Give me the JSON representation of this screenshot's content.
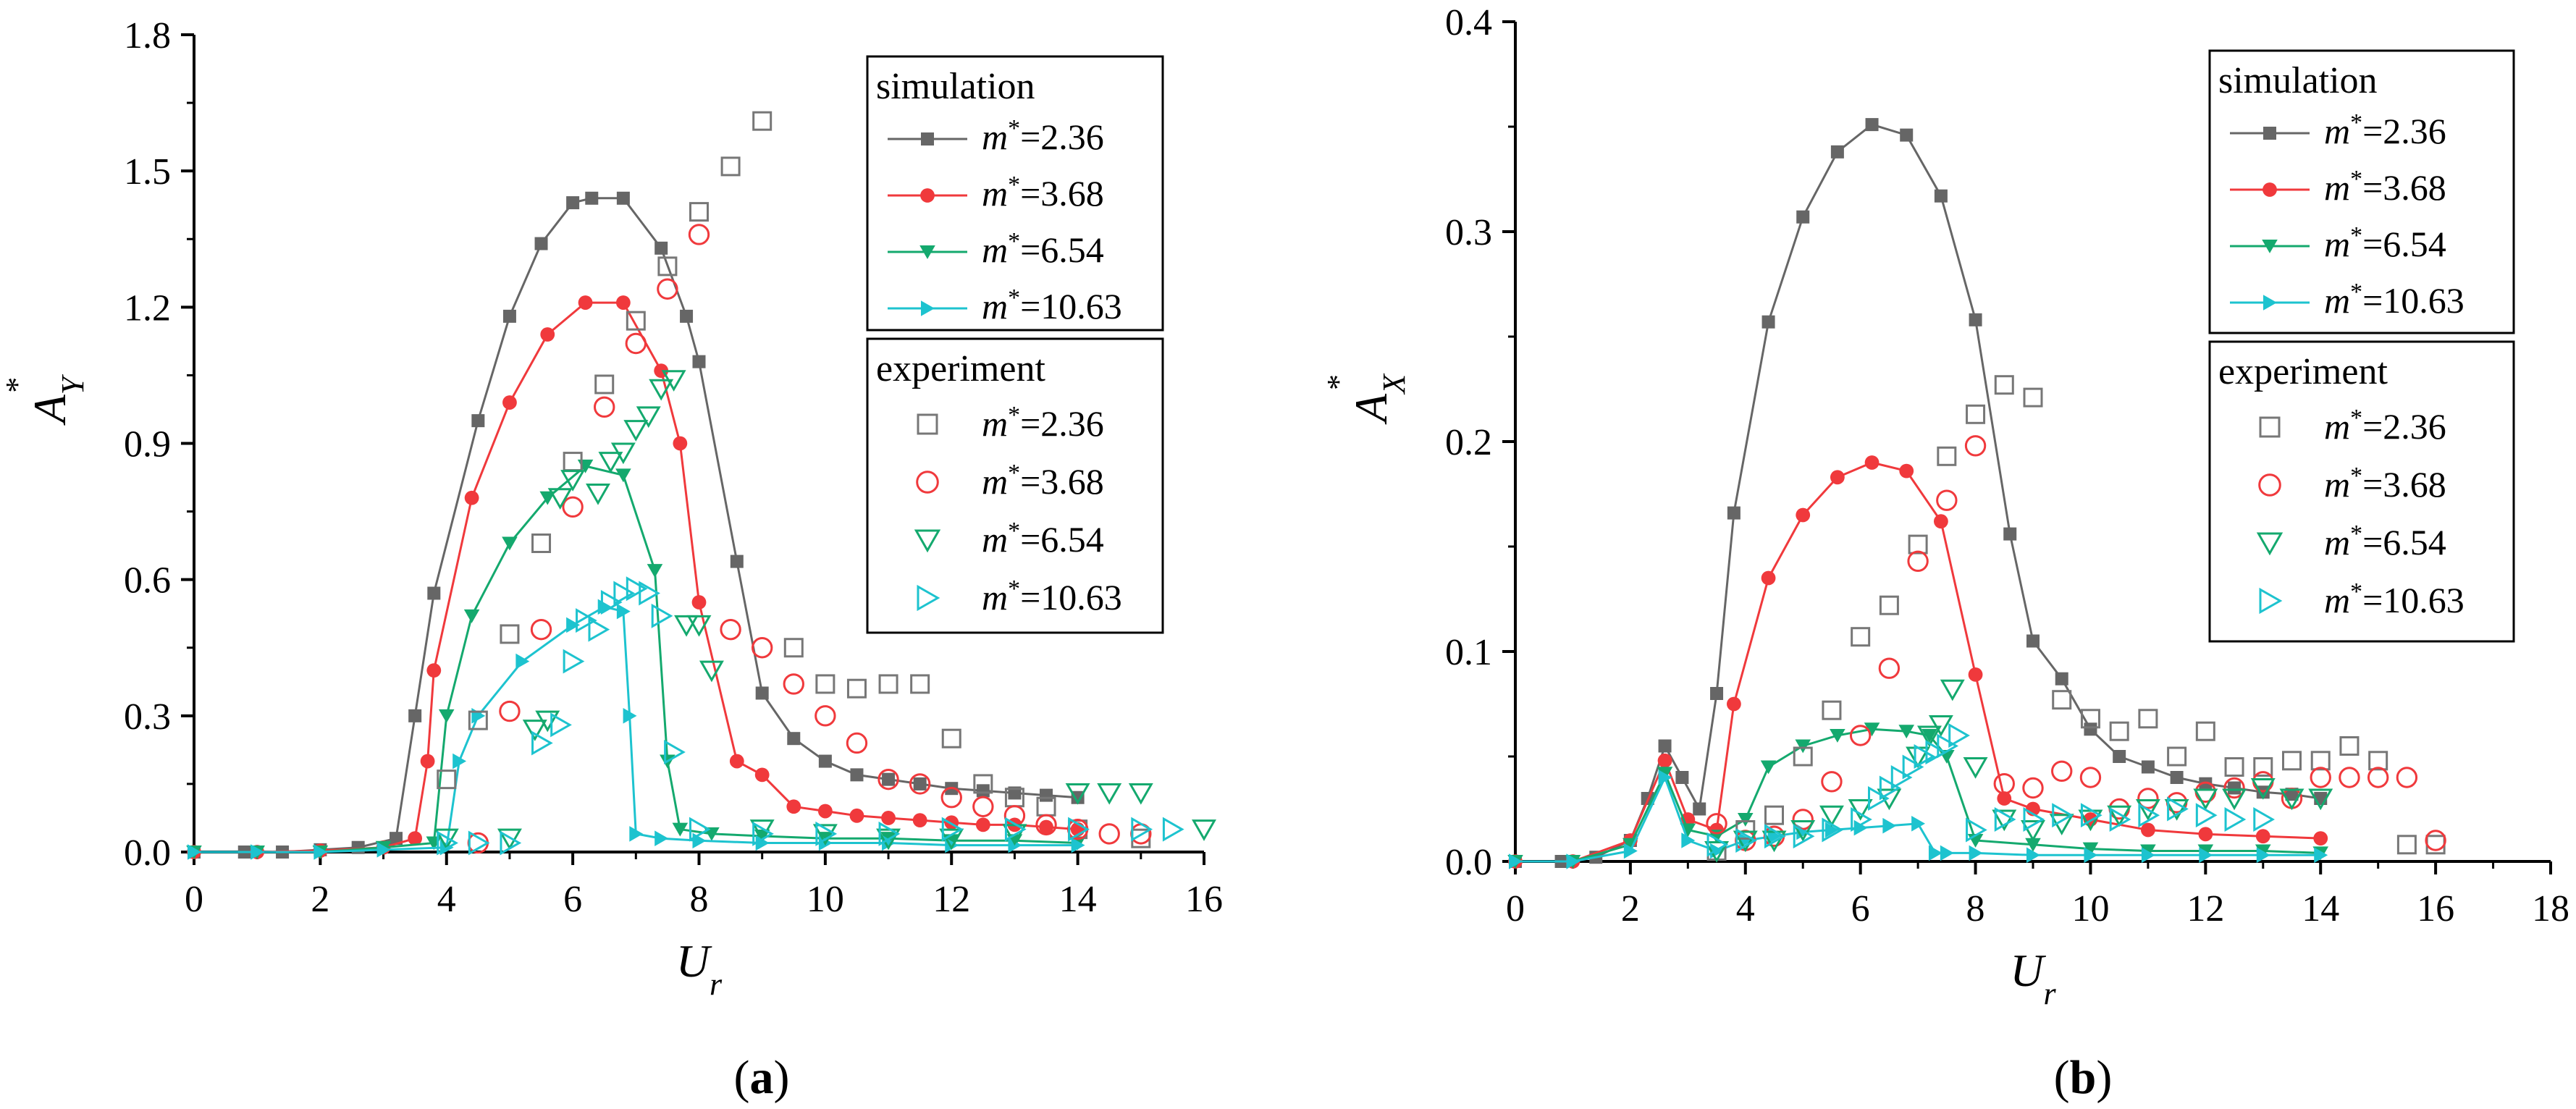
{
  "chart_data": [
    {
      "type": "line",
      "panel_label": "(a)",
      "xlabel": "U_r",
      "ylabel": "A*_Y",
      "xlim": [
        0,
        16
      ],
      "ylim": [
        0,
        1.8
      ],
      "x_ticks": [
        "0",
        "2",
        "4",
        "6",
        "8",
        "10",
        "12",
        "14",
        "16"
      ],
      "y_ticks": [
        "0.0",
        "0.3",
        "0.6",
        "0.9",
        "1.2",
        "1.5",
        "1.8"
      ],
      "legend": {
        "simulation_title": "simulation",
        "experiment_title": "experiment",
        "simulation_labels": [
          "m*=2.36",
          "m*=3.68",
          "m*=6.54",
          "m*=10.63"
        ],
        "experiment_labels": [
          "m*=2.36",
          "m*=3.68",
          "m*=6.54",
          "m*=10.63"
        ]
      },
      "series": [
        {
          "name": "simulation m*=2.36",
          "kind": "simulation",
          "color": "#666666",
          "marker": "square-filled",
          "x": [
            0,
            0.8,
            1.4,
            2,
            2.6,
            3.2,
            3.5,
            3.8,
            4.5,
            5.0,
            5.5,
            6.0,
            6.3,
            6.8,
            7.4,
            7.8,
            8.0,
            8.6,
            9.0,
            9.5,
            10.0,
            10.5,
            11.0,
            11.5,
            12.0,
            12.5,
            13.0,
            13.5,
            14.0
          ],
          "y": [
            0,
            0,
            0,
            0.005,
            0.01,
            0.03,
            0.3,
            0.57,
            0.95,
            1.18,
            1.34,
            1.43,
            1.44,
            1.44,
            1.33,
            1.18,
            1.08,
            0.64,
            0.35,
            0.25,
            0.2,
            0.17,
            0.16,
            0.15,
            0.14,
            0.135,
            0.13,
            0.125,
            0.12
          ]
        },
        {
          "name": "simulation m*=3.68",
          "kind": "simulation",
          "color": "#f0393c",
          "marker": "circle-filled",
          "x": [
            0,
            1,
            2,
            3,
            3.5,
            3.7,
            3.8,
            4.4,
            5.0,
            5.6,
            6.2,
            6.8,
            7.4,
            7.7,
            8.0,
            8.6,
            9.0,
            9.5,
            10.0,
            10.5,
            11.0,
            11.5,
            12.0,
            12.5,
            13.0,
            13.5,
            14.0
          ],
          "y": [
            0,
            0,
            0.003,
            0.01,
            0.03,
            0.2,
            0.4,
            0.78,
            0.99,
            1.14,
            1.21,
            1.21,
            1.06,
            0.9,
            0.55,
            0.2,
            0.17,
            0.1,
            0.09,
            0.08,
            0.075,
            0.07,
            0.065,
            0.06,
            0.06,
            0.055,
            0.05
          ]
        },
        {
          "name": "simulation m*=6.54",
          "kind": "simulation",
          "color": "#14a96e",
          "marker": "triangle-down-filled",
          "x": [
            0,
            1,
            2,
            3,
            3.8,
            4.0,
            4.4,
            5.0,
            5.6,
            6.2,
            6.8,
            7.3,
            7.5,
            7.7,
            8.2,
            9.0,
            10.0,
            11.0,
            12.0,
            13.0,
            14.0
          ],
          "y": [
            0,
            0,
            0,
            0.01,
            0.02,
            0.3,
            0.52,
            0.68,
            0.78,
            0.85,
            0.83,
            0.62,
            0.2,
            0.05,
            0.04,
            0.035,
            0.03,
            0.03,
            0.025,
            0.025,
            0.02
          ]
        },
        {
          "name": "simulation m*=10.63",
          "kind": "simulation",
          "color": "#1dc3cf",
          "marker": "triangle-right-filled",
          "x": [
            0,
            1,
            2,
            3,
            4.0,
            4.2,
            4.5,
            5.2,
            6.0,
            6.5,
            6.8,
            6.9,
            7.0,
            7.4,
            8.0,
            9.0,
            10.0,
            11.0,
            12.0,
            13.0,
            14.0
          ],
          "y": [
            0,
            0,
            0,
            0.005,
            0.01,
            0.2,
            0.3,
            0.42,
            0.5,
            0.54,
            0.53,
            0.3,
            0.04,
            0.03,
            0.025,
            0.02,
            0.02,
            0.02,
            0.015,
            0.015,
            0.015
          ]
        },
        {
          "name": "experiment m*=2.36",
          "kind": "experiment",
          "color": "#777777",
          "marker": "square-open",
          "x": [
            4.0,
            4.5,
            5.0,
            5.5,
            6.0,
            6.5,
            7.0,
            7.5,
            8.0,
            8.5,
            9.0,
            9.5,
            10.0,
            10.5,
            11.0,
            11.5,
            12.0,
            12.5,
            13.0,
            13.5,
            14.0,
            15.0
          ],
          "y": [
            0.16,
            0.29,
            0.48,
            0.68,
            0.86,
            1.03,
            1.17,
            1.29,
            1.41,
            1.51,
            1.61,
            0.45,
            0.37,
            0.36,
            0.37,
            0.37,
            0.25,
            0.15,
            0.12,
            0.1,
            0.05,
            0.03
          ]
        },
        {
          "name": "experiment m*=3.68",
          "kind": "experiment",
          "color": "#f0393c",
          "marker": "circle-open",
          "x": [
            4.5,
            5.0,
            5.5,
            6.0,
            6.5,
            7.0,
            7.5,
            8.0,
            8.5,
            9.0,
            9.5,
            10.0,
            10.5,
            11.0,
            11.5,
            12.0,
            12.5,
            13.0,
            13.5,
            14.0,
            14.5,
            15.0
          ],
          "y": [
            0.02,
            0.31,
            0.49,
            0.76,
            0.98,
            1.12,
            1.24,
            1.36,
            0.49,
            0.45,
            0.37,
            0.3,
            0.24,
            0.16,
            0.15,
            0.12,
            0.1,
            0.08,
            0.06,
            0.05,
            0.04,
            0.04
          ]
        },
        {
          "name": "experiment m*=6.54",
          "kind": "experiment",
          "color": "#14a96e",
          "marker": "triangle-down-open",
          "x": [
            4.0,
            5.0,
            5.4,
            5.6,
            5.8,
            6.0,
            6.4,
            6.6,
            6.8,
            7.0,
            7.2,
            7.4,
            7.6,
            7.8,
            8.0,
            8.2,
            9.0,
            10.0,
            11.0,
            12.0,
            13.0,
            14.0,
            14.5,
            15.0,
            16.0
          ],
          "y": [
            0.03,
            0.03,
            0.27,
            0.29,
            0.78,
            0.82,
            0.79,
            0.86,
            0.88,
            0.93,
            0.96,
            1.02,
            1.04,
            0.5,
            0.5,
            0.4,
            0.05,
            0.04,
            0.03,
            0.03,
            0.04,
            0.13,
            0.13,
            0.13,
            0.05
          ]
        },
        {
          "name": "experiment m*=10.63",
          "kind": "experiment",
          "color": "#1dc3cf",
          "marker": "triangle-right-open",
          "x": [
            4.0,
            4.5,
            5.0,
            5.5,
            5.8,
            6.0,
            6.2,
            6.4,
            6.6,
            6.8,
            7.0,
            7.2,
            7.4,
            7.6,
            8.0,
            9.0,
            10.0,
            11.0,
            12.0,
            13.0,
            14.0,
            15.0,
            15.5
          ],
          "y": [
            0.02,
            0.02,
            0.02,
            0.24,
            0.28,
            0.42,
            0.51,
            0.49,
            0.55,
            0.57,
            0.58,
            0.57,
            0.52,
            0.22,
            0.05,
            0.04,
            0.04,
            0.04,
            0.05,
            0.05,
            0.05,
            0.05,
            0.05
          ]
        }
      ]
    },
    {
      "type": "line",
      "panel_label": "(b)",
      "xlabel": "U_r",
      "ylabel": "A*_X",
      "xlim": [
        0,
        18
      ],
      "ylim": [
        0,
        0.4
      ],
      "x_ticks": [
        "0",
        "2",
        "4",
        "6",
        "8",
        "10",
        "12",
        "14",
        "16",
        "18"
      ],
      "y_ticks": [
        "0.0",
        "0.1",
        "0.2",
        "0.3",
        "0.4"
      ],
      "legend": {
        "simulation_title": "simulation",
        "experiment_title": "experiment",
        "simulation_labels": [
          "m*=2.36",
          "m*=3.68",
          "m*=6.54",
          "m*=10.63"
        ],
        "experiment_labels": [
          "m*=2.36",
          "m*=3.68",
          "m*=6.54",
          "m*=10.63"
        ]
      },
      "series": [
        {
          "name": "simulation m*=2.36",
          "kind": "simulation",
          "color": "#666666",
          "marker": "square-filled",
          "x": [
            0,
            0.8,
            1.4,
            2.0,
            2.3,
            2.6,
            2.9,
            3.2,
            3.5,
            3.8,
            4.4,
            5.0,
            5.6,
            6.2,
            6.8,
            7.4,
            8.0,
            8.6,
            9.0,
            9.5,
            10.0,
            10.5,
            11.0,
            11.5,
            12.0,
            12.5,
            13.0,
            13.5,
            14.0
          ],
          "y": [
            0,
            0,
            0.002,
            0.01,
            0.03,
            0.055,
            0.04,
            0.025,
            0.08,
            0.166,
            0.257,
            0.307,
            0.338,
            0.351,
            0.346,
            0.317,
            0.258,
            0.156,
            0.105,
            0.087,
            0.063,
            0.05,
            0.045,
            0.04,
            0.037,
            0.035,
            0.033,
            0.032,
            0.03
          ]
        },
        {
          "name": "simulation m*=3.68",
          "kind": "simulation",
          "color": "#f0393c",
          "marker": "circle-filled",
          "x": [
            0,
            1,
            2,
            2.6,
            3.0,
            3.5,
            3.8,
            4.4,
            5.0,
            5.6,
            6.2,
            6.8,
            7.4,
            8.0,
            8.5,
            9.0,
            10.0,
            11.0,
            12.0,
            13.0,
            14.0
          ],
          "y": [
            0,
            0,
            0.01,
            0.048,
            0.02,
            0.015,
            0.075,
            0.135,
            0.165,
            0.183,
            0.19,
            0.186,
            0.162,
            0.089,
            0.03,
            0.025,
            0.02,
            0.015,
            0.013,
            0.012,
            0.011
          ]
        },
        {
          "name": "simulation m*=6.54",
          "kind": "simulation",
          "color": "#14a96e",
          "marker": "triangle-down-filled",
          "x": [
            0,
            1,
            2,
            2.6,
            3.0,
            3.5,
            4.0,
            4.4,
            5.0,
            5.6,
            6.2,
            6.8,
            7.2,
            7.5,
            8.0,
            9.0,
            10.0,
            11.0,
            12.0,
            13.0,
            14.0
          ],
          "y": [
            0,
            0,
            0.008,
            0.042,
            0.015,
            0.012,
            0.02,
            0.045,
            0.055,
            0.06,
            0.063,
            0.062,
            0.06,
            0.05,
            0.01,
            0.008,
            0.006,
            0.005,
            0.005,
            0.005,
            0.004
          ]
        },
        {
          "name": "simulation m*=10.63",
          "kind": "simulation",
          "color": "#1dc3cf",
          "marker": "triangle-right-filled",
          "x": [
            0,
            1,
            2,
            2.6,
            3.0,
            3.5,
            4.0,
            4.5,
            5.0,
            5.5,
            6.0,
            6.5,
            7.0,
            7.3,
            7.5,
            8.0,
            9.0,
            10.0,
            11.0,
            12.0,
            13.0,
            14.0
          ],
          "y": [
            0,
            0,
            0.005,
            0.04,
            0.01,
            0.005,
            0.01,
            0.012,
            0.014,
            0.015,
            0.016,
            0.017,
            0.018,
            0.004,
            0.004,
            0.004,
            0.003,
            0.003,
            0.003,
            0.003,
            0.003,
            0.003
          ]
        },
        {
          "name": "experiment m*=2.36",
          "kind": "experiment",
          "color": "#777777",
          "marker": "square-open",
          "x": [
            3.5,
            4.0,
            4.5,
            5.0,
            5.5,
            6.0,
            6.5,
            7.0,
            7.5,
            8.0,
            8.5,
            9.0,
            9.5,
            10.0,
            10.5,
            11.0,
            11.5,
            12.0,
            12.5,
            13.0,
            13.5,
            14.0,
            14.5,
            15.0,
            15.5,
            16.0
          ],
          "y": [
            0.005,
            0.015,
            0.022,
            0.05,
            0.072,
            0.107,
            0.122,
            0.151,
            0.193,
            0.213,
            0.227,
            0.221,
            0.077,
            0.068,
            0.062,
            0.068,
            0.05,
            0.062,
            0.045,
            0.045,
            0.048,
            0.048,
            0.055,
            0.048,
            0.008,
            0.008
          ]
        },
        {
          "name": "experiment m*=3.68",
          "kind": "experiment",
          "color": "#f0393c",
          "marker": "circle-open",
          "x": [
            3.5,
            4.0,
            4.5,
            5.0,
            5.5,
            6.0,
            6.5,
            7.0,
            7.5,
            8.0,
            8.5,
            9.0,
            9.5,
            10.0,
            10.5,
            11.0,
            11.5,
            12.0,
            12.5,
            13.0,
            13.5,
            14.0,
            14.5,
            15.0,
            15.5,
            16.0
          ],
          "y": [
            0.018,
            0.01,
            0.012,
            0.02,
            0.038,
            0.06,
            0.092,
            0.143,
            0.172,
            0.198,
            0.037,
            0.035,
            0.043,
            0.04,
            0.025,
            0.03,
            0.028,
            0.033,
            0.035,
            0.038,
            0.03,
            0.04,
            0.04,
            0.04,
            0.04,
            0.01
          ]
        },
        {
          "name": "experiment m*=6.54",
          "kind": "experiment",
          "color": "#14a96e",
          "marker": "triangle-down-open",
          "x": [
            3.5,
            4.0,
            4.5,
            5.0,
            5.5,
            6.0,
            6.5,
            7.0,
            7.2,
            7.4,
            7.6,
            8.0,
            8.5,
            9.0,
            9.5,
            10.0,
            10.5,
            11.0,
            11.5,
            12.0,
            12.5,
            13.0,
            13.5,
            14.0
          ],
          "y": [
            0.005,
            0.01,
            0.01,
            0.015,
            0.022,
            0.025,
            0.03,
            0.05,
            0.06,
            0.065,
            0.082,
            0.045,
            0.02,
            0.015,
            0.018,
            0.02,
            0.022,
            0.025,
            0.025,
            0.03,
            0.03,
            0.035,
            0.03,
            0.03
          ]
        },
        {
          "name": "experiment m*=10.63",
          "kind": "experiment",
          "color": "#1dc3cf",
          "marker": "triangle-right-open",
          "x": [
            3.5,
            4.0,
            4.5,
            5.0,
            5.5,
            6.0,
            6.3,
            6.5,
            6.7,
            6.9,
            7.1,
            7.3,
            7.5,
            7.7,
            8.0,
            8.5,
            9.0,
            9.5,
            10.0,
            10.5,
            11.0,
            11.5,
            12.0,
            12.5,
            13.0
          ],
          "y": [
            0.008,
            0.01,
            0.012,
            0.012,
            0.015,
            0.02,
            0.03,
            0.035,
            0.04,
            0.045,
            0.05,
            0.052,
            0.055,
            0.06,
            0.015,
            0.02,
            0.02,
            0.022,
            0.022,
            0.02,
            0.022,
            0.025,
            0.022,
            0.02,
            0.02
          ]
        }
      ]
    }
  ]
}
